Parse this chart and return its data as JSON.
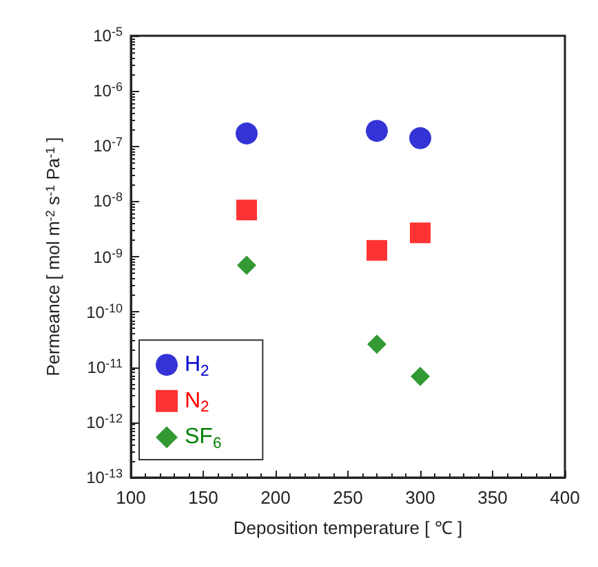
{
  "chart_data": {
    "type": "scatter",
    "xlabel": "Deposition temperature [ ℃ ]",
    "ylabel": "Permeance [ mol m$^{-2}$ s$^{-1}$ Pa$^{-1}$ ]",
    "x": [
      180,
      270,
      300
    ],
    "series": [
      {
        "name": "H$_{2}$",
        "color": "#0000cc",
        "marker": "circle",
        "values": [
          1.7e-07,
          1.9e-07,
          1.4e-07
        ]
      },
      {
        "name": "N$_{2}$",
        "color": "#ff0000",
        "marker": "square",
        "values": [
          7e-09,
          1.3e-09,
          2.7e-09
        ]
      },
      {
        "name": "SF$_{6}$",
        "color": "#008000",
        "marker": "diamond",
        "values": [
          7e-10,
          2.6e-11,
          6.8e-12
        ]
      }
    ],
    "log": "y",
    "xlim": [
      100,
      400
    ],
    "xticks": [
      100,
      150,
      200,
      250,
      300,
      350,
      400
    ],
    "ylim": [
      1e-13,
      1e-05
    ],
    "yticks": [
      {
        "value": 1e-13,
        "label": "10$^{-13}$"
      },
      {
        "value": 1e-12,
        "label": "10$^{-12}$"
      },
      {
        "value": 1e-11,
        "label": "10$^{-11}$"
      },
      {
        "value": 1e-10,
        "label": "10$^{-10}$"
      },
      {
        "value": 1e-09,
        "label": "10$^{-9}$"
      },
      {
        "value": 1e-08,
        "label": "10$^{-8}$"
      },
      {
        "value": 1e-07,
        "label": "10$^{-7}$"
      },
      {
        "value": 1e-06,
        "label": "10$^{-6}$"
      },
      {
        "value": 1e-05,
        "label": "10$^{-5}$"
      }
    ],
    "grid": false,
    "legend": "bottom left"
  }
}
